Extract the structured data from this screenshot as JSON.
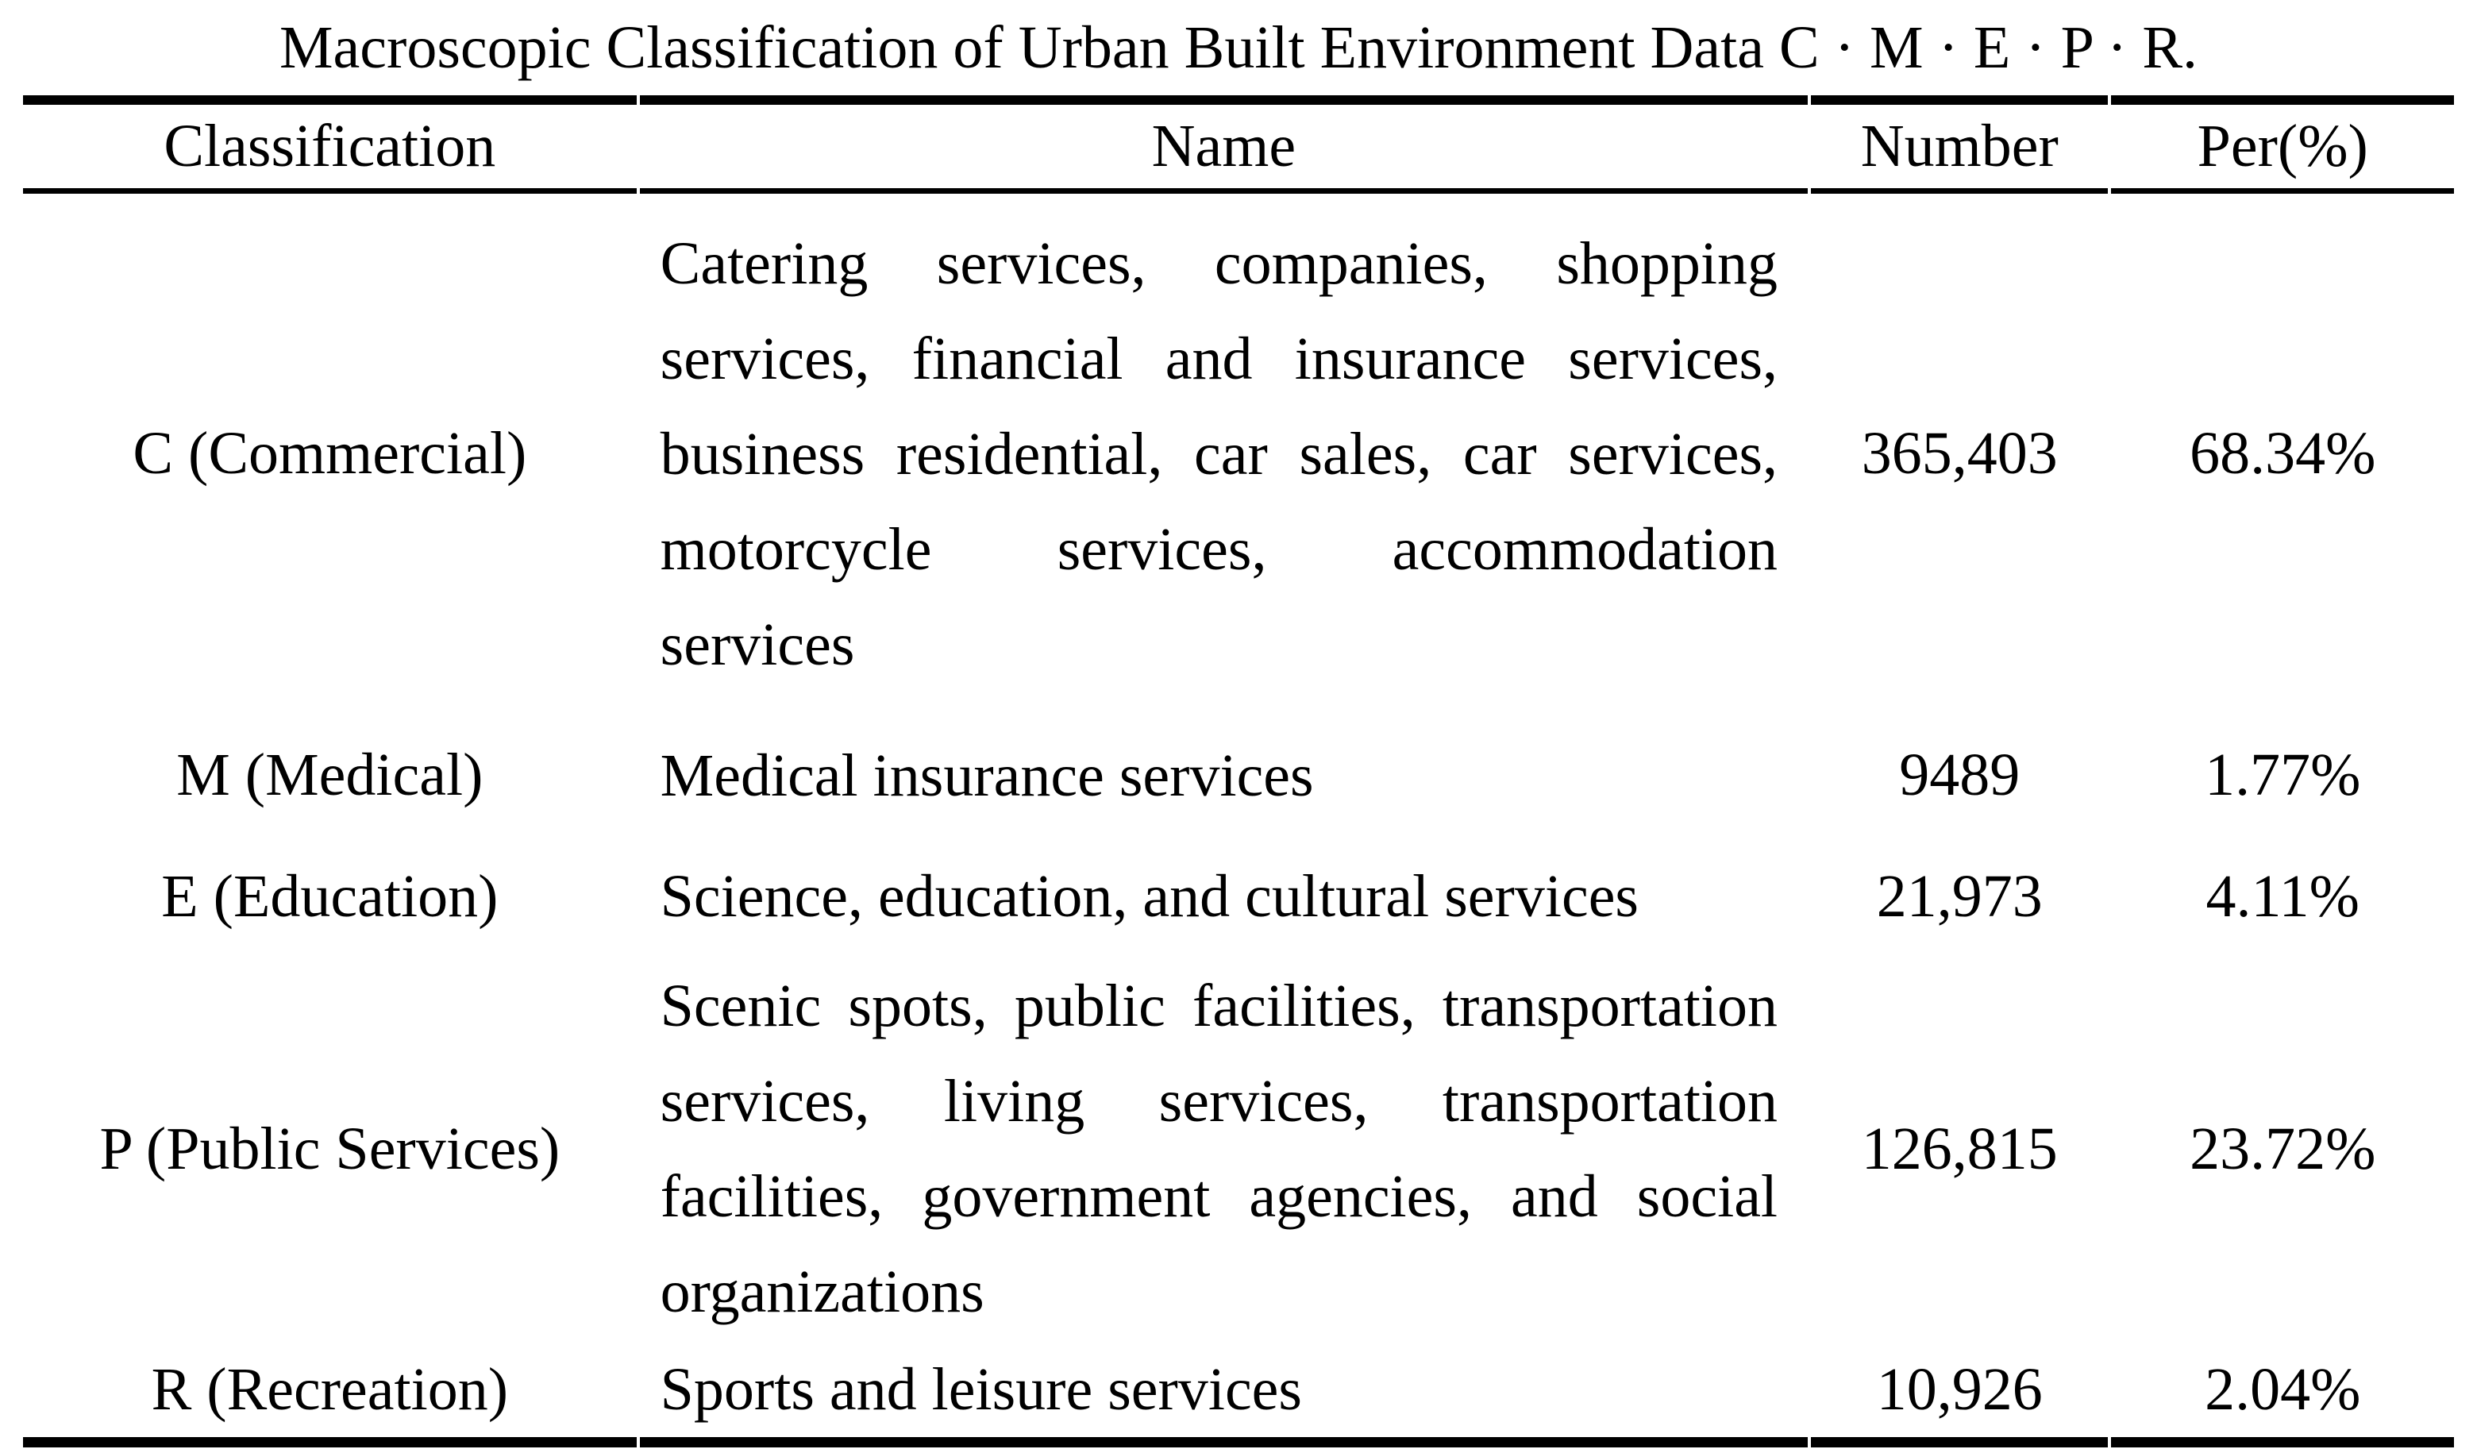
{
  "page": {
    "title": "Macroscopic Classification of Urban Built Environment Data C · M · E · P · R."
  },
  "table": {
    "columns": [
      "Classification",
      "Name",
      "Number",
      "Per(%)"
    ],
    "rows": [
      {
        "classification": "C (Commercial)",
        "name_lines": [
          "Catering services, companies, shopping",
          "services, financial and insurance services,",
          "business residential, car sales, car services,",
          "motorcycle services, accommodation",
          "services"
        ],
        "number": "365,403",
        "per": "68.34%"
      },
      {
        "classification": "M (Medical)",
        "name_lines": [
          "Medical insurance services"
        ],
        "number": "9489",
        "per": "1.77%"
      },
      {
        "classification": "E (Education)",
        "name_lines": [
          "Science, education, and cultural services"
        ],
        "number": "21,973",
        "per": "4.11%"
      },
      {
        "classification": "P (Public Services)",
        "name_lines": [
          "Scenic spots, public facilities, transportation",
          "services, living services, transportation",
          "facilities, government agencies, and social",
          "organizations"
        ],
        "number": "126,815",
        "per": "23.72%"
      },
      {
        "classification": "R (Recreation)",
        "name_lines": [
          "Sports and leisure services"
        ],
        "number": "10,926",
        "per": "2.04%"
      }
    ],
    "colors": {
      "text": "#000000",
      "background": "#ffffff",
      "rule": "#000000"
    }
  }
}
